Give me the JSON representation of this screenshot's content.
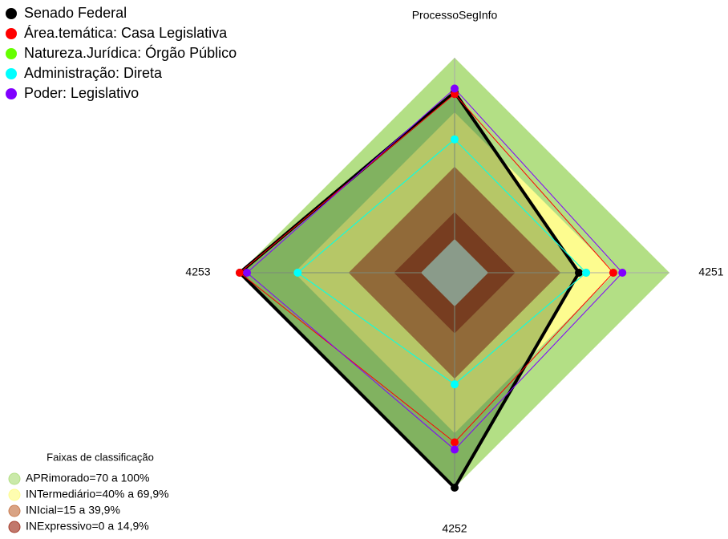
{
  "chart_data": {
    "type": "radar",
    "categories": [
      "ProcessoSegInfo",
      "4251",
      "4252",
      "4253"
    ],
    "rlim": [
      0,
      100
    ],
    "series": [
      {
        "name": "Senado Federal",
        "color": "#000000",
        "values": [
          81,
          50,
          100,
          100
        ]
      },
      {
        "name": "Área.temática: Casa Legislativa",
        "color": "#ff0000",
        "values": [
          80,
          69,
          75,
          100
        ]
      },
      {
        "name": "Natureza.Jurídica: Órgão Público",
        "color": "#66ff00",
        "values": [
          55,
          54,
          43,
          68
        ]
      },
      {
        "name": "Administração: Direta",
        "color": "#00ffff",
        "values": [
          55,
          54,
          43,
          68
        ]
      },
      {
        "name": "Poder: Legislativo",
        "color": "#8000ff",
        "values": [
          83,
          74,
          79,
          96
        ]
      }
    ],
    "bands_title": "Faixas de classificação",
    "bands": [
      {
        "label": "APRimorado=70 a 100%",
        "max": 100,
        "color": "#b3df85"
      },
      {
        "label": "INTermediário=40% a 69,9%",
        "max": 69.9,
        "color": "#fdfc8f"
      },
      {
        "label": "INIcial=15 a 39,9%",
        "max": 39.9,
        "color": "#c97c50"
      },
      {
        "label": "INExpressivo=0 a 14,9%",
        "max": 14.9,
        "color": "#a63e2d"
      }
    ]
  }
}
